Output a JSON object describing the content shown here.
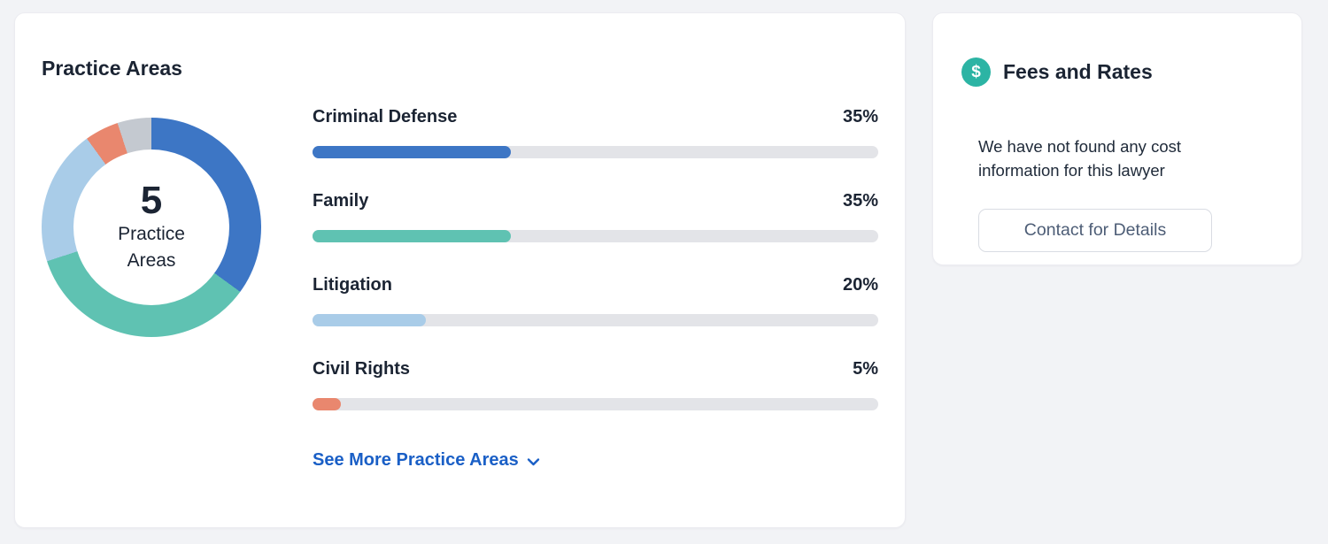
{
  "colors": {
    "link_blue": "#1a5fc6",
    "button_text": "#4d5d76",
    "track_gray": "#e3e4e8"
  },
  "practice_areas": {
    "title": "Practice Areas",
    "donut_center": {
      "value": "5",
      "label_line1": "Practice",
      "label_line2": "Areas"
    },
    "items": [
      {
        "label": "Criminal Defense",
        "percent_label": "35%",
        "value": 35,
        "color": "#3d76c5"
      },
      {
        "label": "Family",
        "percent_label": "35%",
        "value": 35,
        "color": "#5fc2b2"
      },
      {
        "label": "Litigation",
        "percent_label": "20%",
        "value": 20,
        "color": "#a9cce8"
      },
      {
        "label": "Civil Rights",
        "percent_label": "5%",
        "value": 5,
        "color": "#e9876e"
      }
    ],
    "see_more_label": "See More Practice Areas"
  },
  "fees_and_rates": {
    "title": "Fees and Rates",
    "message": "We have not found any cost information for this lawyer",
    "button_label": "Contact for Details",
    "icon_symbol": "$",
    "icon_color": "#2cb4a4"
  },
  "chart_data": {
    "type": "pie",
    "title": "Practice Areas",
    "subtype": "donut",
    "categories": [
      "Criminal Defense",
      "Family",
      "Litigation",
      "Civil Rights",
      ""
    ],
    "values": [
      35,
      35,
      20,
      5,
      5
    ],
    "colors": [
      "#3d76c5",
      "#5fc2b2",
      "#a9cce8",
      "#e9876e",
      "#c4c9d0"
    ],
    "center_value": "5",
    "center_label": "Practice Areas",
    "legend_position": "none",
    "start_angle_deg": 0,
    "direction": "clockwise"
  }
}
